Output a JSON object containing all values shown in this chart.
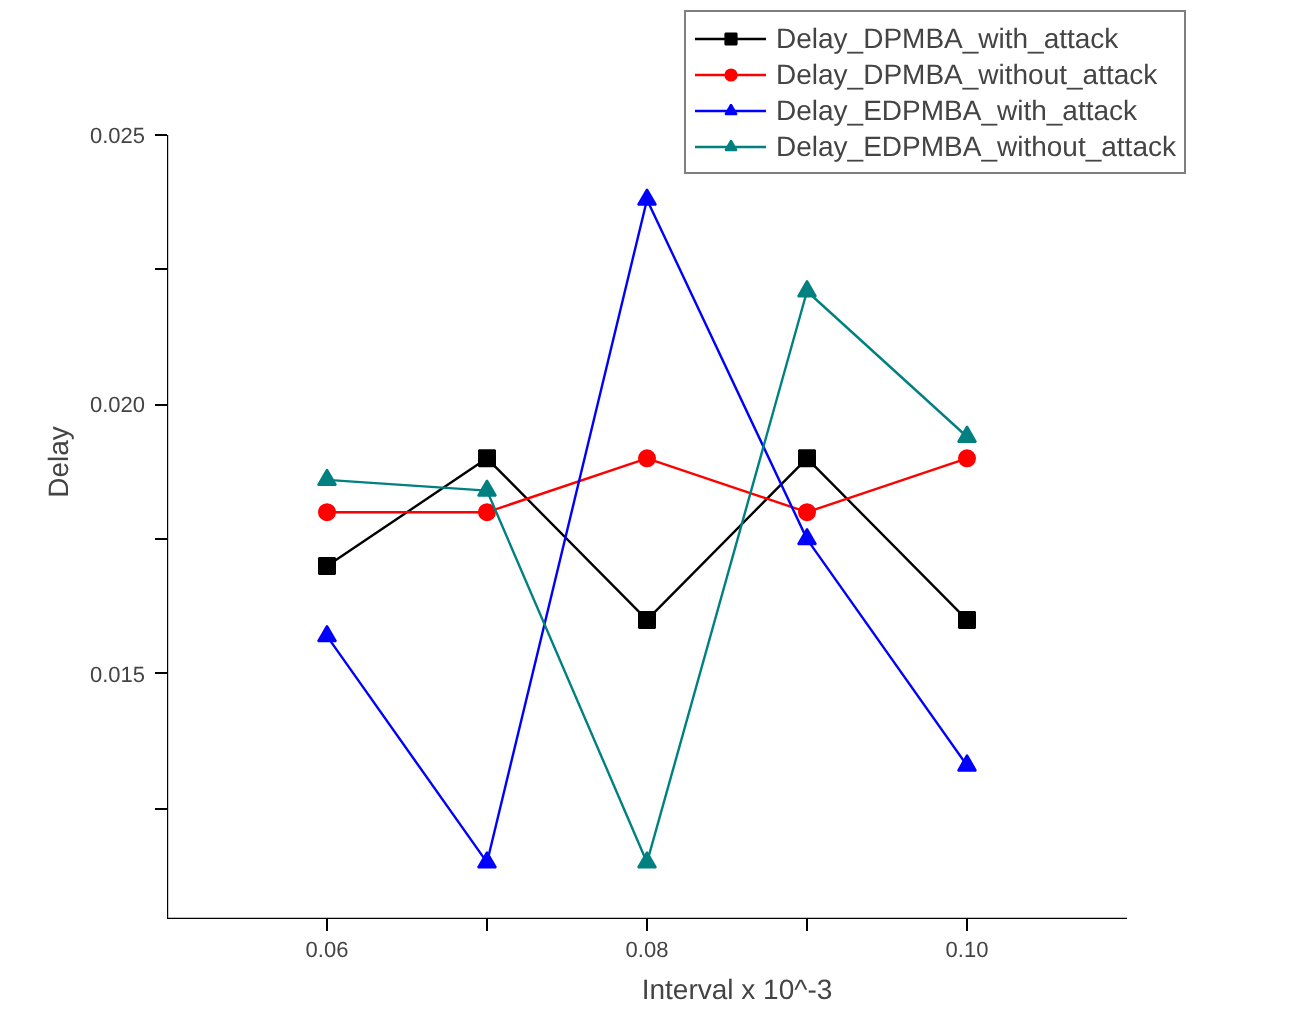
{
  "chart_data": {
    "type": "line",
    "xlabel": "Interval x 10^-3",
    "ylabel": "Delay",
    "x": [
      0.06,
      0.07,
      0.08,
      0.09,
      0.1
    ],
    "xlim": [
      0.05,
      0.11
    ],
    "xticks": [
      0.06,
      {
        "value": 0.07,
        "label": null
      },
      0.08,
      {
        "value": 0.09,
        "label": null
      },
      {
        "value": 0.1,
        "label": "0.10"
      }
    ],
    "ylim": [
      0.01045,
      0.025
    ],
    "yticks": [
      {
        "value": 0.0125,
        "label": null
      },
      0.015,
      {
        "value": 0.0175,
        "label": null
      },
      {
        "value": 0.02,
        "label": "0.020"
      },
      {
        "value": 0.0225,
        "label": null
      },
      0.025
    ],
    "grid": false,
    "legend": "top right",
    "line_style": "solid",
    "series": [
      {
        "name": "Delay_DPMBA_with_attack",
        "color": "#000000",
        "marker": "square",
        "values": [
          0.017,
          0.019,
          0.016,
          0.019,
          0.016
        ]
      },
      {
        "name": "Delay_DPMBA_without_attack",
        "color": "#ff0000",
        "marker": "circle",
        "values": [
          0.018,
          0.018,
          0.019,
          0.018,
          0.019
        ]
      },
      {
        "name": "Delay_EDPMBA_with_attack",
        "color": "#0000ff",
        "marker": "triangle",
        "values": [
          0.0157,
          0.0115,
          0.0238,
          0.0175,
          0.0133
        ]
      },
      {
        "name": "Delay_EDPMBA_without_attack",
        "color": "#008080",
        "marker": "triangle",
        "values": [
          0.0186,
          0.0184,
          0.0115,
          0.0221,
          0.0194
        ]
      }
    ]
  }
}
